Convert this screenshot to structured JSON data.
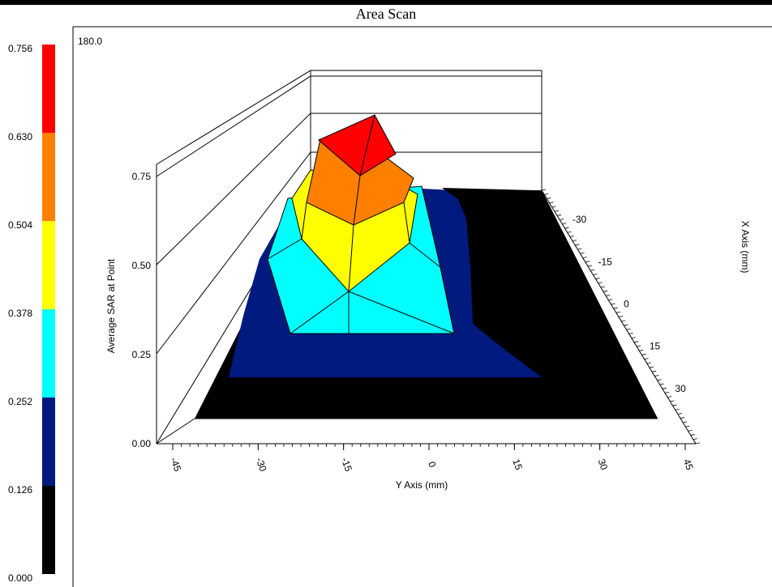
{
  "window": {
    "title": "Area Scan"
  },
  "chart_data": {
    "type": "surface",
    "title": "Area Scan",
    "xlabel": "Y Axis (mm)",
    "ylabel": "X Axis (mm)",
    "zlabel": "Average SAR at Point",
    "corner_label": "180.0",
    "x_ticks": [
      "-45",
      "-30",
      "-15",
      "0",
      "15",
      "30",
      "45"
    ],
    "y_ticks": [
      "-30",
      "-15",
      "0",
      "15",
      "30"
    ],
    "z_ticks": [
      "0.00",
      "0.25",
      "0.50",
      "0.75"
    ],
    "zlim": [
      0,
      0.75
    ],
    "colorbar": {
      "ticks": [
        "0.756",
        "0.630",
        "0.504",
        "0.378",
        "0.252",
        "0.126",
        "0.000"
      ],
      "bands": [
        {
          "from": 0.63,
          "to": 0.756,
          "color": "#ff0000"
        },
        {
          "from": 0.504,
          "to": 0.63,
          "color": "#ff7f00"
        },
        {
          "from": 0.378,
          "to": 0.504,
          "color": "#ffff00"
        },
        {
          "from": 0.252,
          "to": 0.378,
          "color": "#00ffff"
        },
        {
          "from": 0.126,
          "to": 0.252,
          "color": "#001a80"
        },
        {
          "from": 0.0,
          "to": 0.126,
          "color": "#000000"
        }
      ]
    },
    "peak_value": 0.756
  }
}
